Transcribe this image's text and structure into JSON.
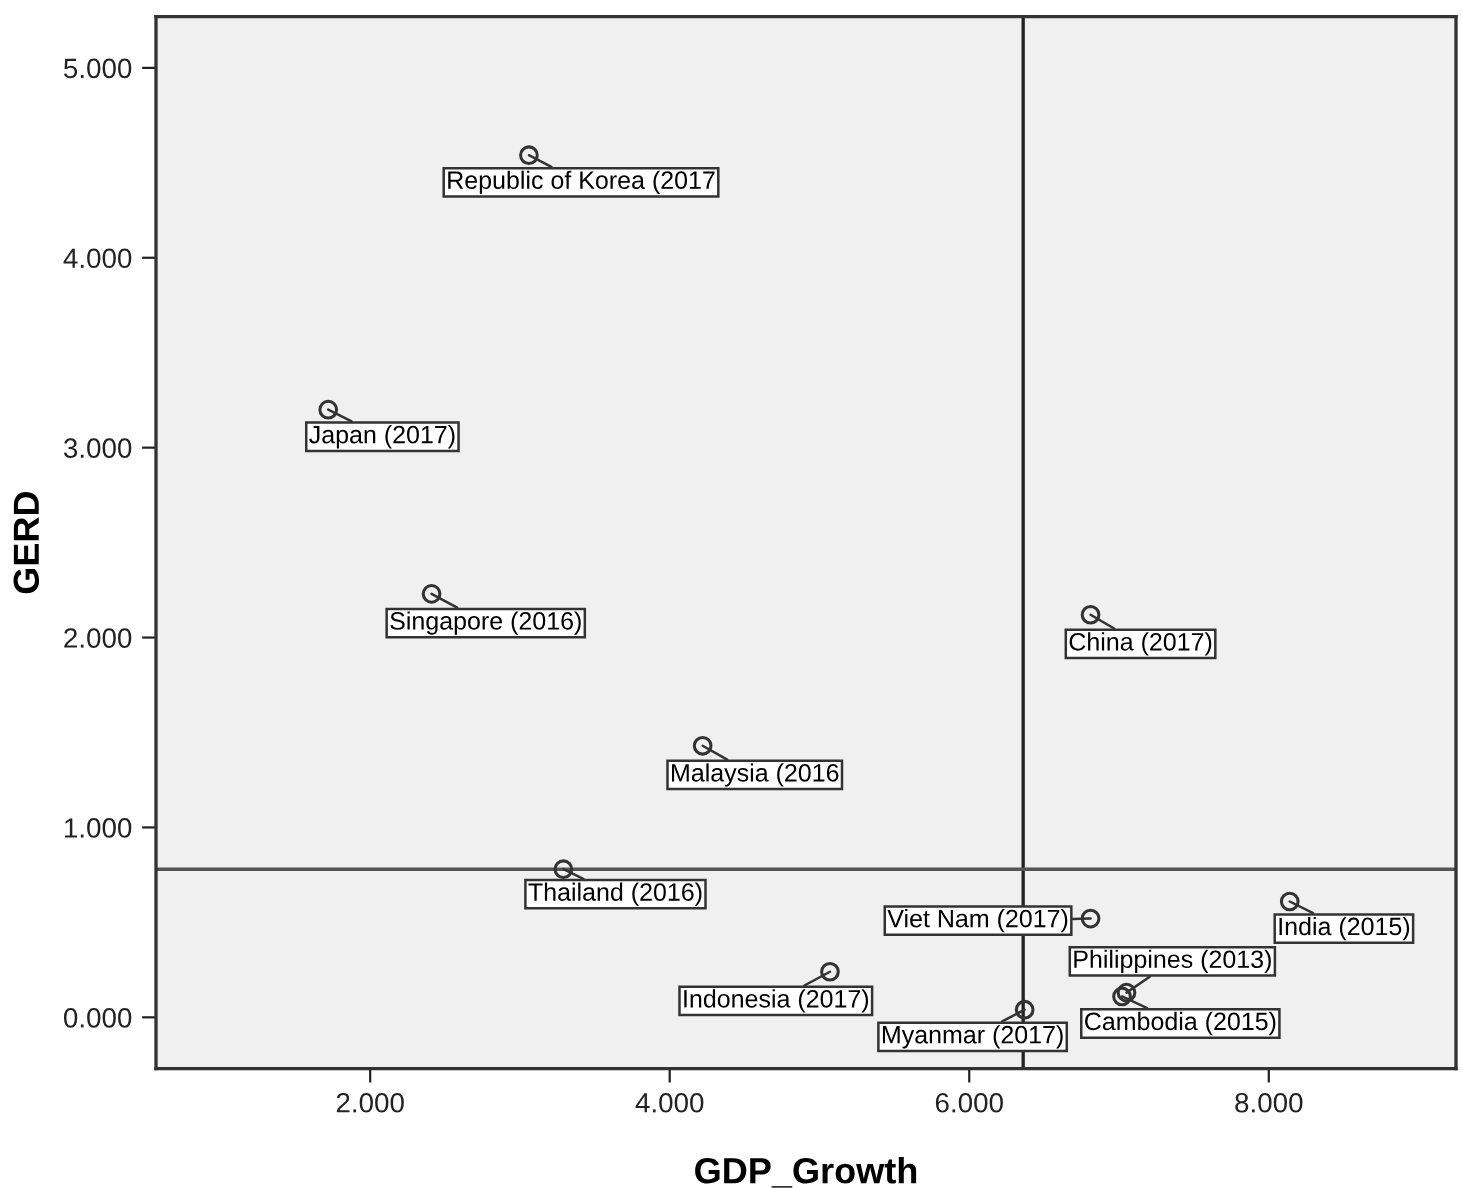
{
  "chart_data": {
    "type": "scatter",
    "xlabel": "GDP_Growth",
    "ylabel": "GERD",
    "series": [
      {
        "color": "#333333",
        "x": [
          3.06,
          1.72,
          2.41,
          4.22,
          3.29,
          6.81,
          6.81,
          5.07,
          6.37,
          7.05,
          7.02,
          8.14
        ],
        "values": [
          4.54,
          3.2,
          2.23,
          1.43,
          0.78,
          2.12,
          0.52,
          0.24,
          0.04,
          0.13,
          0.11,
          0.61
        ]
      }
    ],
    "annotations": [
      {
        "text": "Republic of Korea (2017",
        "x": 3.06,
        "y": 4.54
      },
      {
        "text": "Japan (2017)",
        "x": 1.72,
        "y": 3.2
      },
      {
        "text": "Singapore (2016)",
        "x": 2.41,
        "y": 2.23
      },
      {
        "text": "Malaysia (2016",
        "x": 4.22,
        "y": 1.43
      },
      {
        "text": "Thailand (2016)",
        "x": 3.29,
        "y": 0.78
      },
      {
        "text": "China (2017)",
        "x": 6.81,
        "y": 2.12
      },
      {
        "text": "Viet Nam (2017)",
        "x": 6.81,
        "y": 0.52
      },
      {
        "text": "Indonesia (2017)",
        "x": 5.07,
        "y": 0.24
      },
      {
        "text": "Myanmar (2017)",
        "x": 6.37,
        "y": 0.04
      },
      {
        "text": "Philippines (2013)",
        "x": 7.05,
        "y": 0.13
      },
      {
        "text": "Cambodia (2015)",
        "x": 7.02,
        "y": 0.11
      },
      {
        "text": "India (2015)",
        "x": 8.14,
        "y": 0.61
      }
    ],
    "marker": "circle",
    "xlim": [
      0.57,
      9.25
    ],
    "xticks": [
      {
        "value": 2,
        "label": "2.000"
      },
      {
        "value": 4,
        "label": "4.000"
      },
      {
        "value": 6,
        "label": "6.000"
      },
      {
        "value": 8,
        "label": "8.000"
      }
    ],
    "ylim": [
      -0.27,
      5.27
    ],
    "yticks": [
      {
        "value": 0,
        "label": "0.000"
      },
      {
        "value": 1,
        "label": "1.000"
      },
      {
        "value": 2,
        "label": "2.000"
      },
      {
        "value": 3,
        "label": "3.000"
      },
      {
        "value": 4,
        "label": "4.000"
      },
      {
        "value": 5,
        "label": "5.000"
      }
    ],
    "ref_lines": [
      {
        "axis": "x",
        "value": 6.36,
        "color": "#222222"
      },
      {
        "axis": "y",
        "value": 0.78,
        "color": "#555555"
      }
    ],
    "grid": false,
    "legend": false
  }
}
